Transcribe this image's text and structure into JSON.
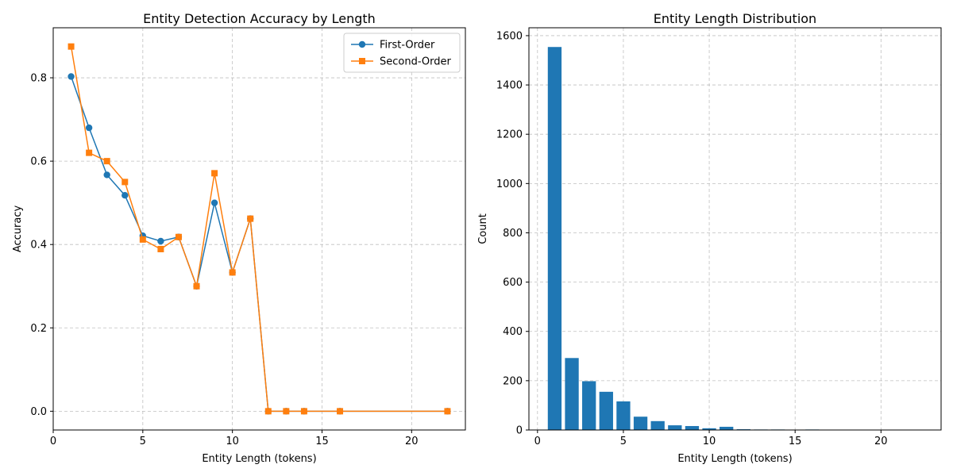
{
  "chart_data": [
    {
      "type": "line",
      "title": "Entity Detection Accuracy by Length",
      "xlabel": "Entity Length (tokens)",
      "ylabel": "Accuracy",
      "xlim": [
        0,
        23
      ],
      "ylim": [
        -0.045,
        0.92
      ],
      "xticks": [
        0,
        5,
        10,
        15,
        20
      ],
      "yticks": [
        0.0,
        0.2,
        0.4,
        0.6,
        0.8
      ],
      "ytick_format": 1,
      "grid": true,
      "legend_position": "top-right",
      "series": [
        {
          "name": "First-Order",
          "color": "#1f77b4",
          "marker": "circle",
          "x": [
            1,
            2,
            3,
            4,
            5,
            6,
            7,
            8,
            9,
            10,
            11,
            12,
            13,
            14,
            16,
            22
          ],
          "y": [
            0.803,
            0.68,
            0.567,
            0.518,
            0.421,
            0.408,
            0.418,
            0.3,
            0.5,
            0.333,
            0.462,
            0.0,
            0.0,
            0.0,
            0.0,
            0.0
          ]
        },
        {
          "name": "Second-Order",
          "color": "#ff7f0e",
          "marker": "square",
          "x": [
            1,
            2,
            3,
            4,
            5,
            6,
            7,
            8,
            9,
            10,
            11,
            12,
            13,
            14,
            16,
            22
          ],
          "y": [
            0.875,
            0.62,
            0.6,
            0.55,
            0.412,
            0.389,
            0.418,
            0.3,
            0.571,
            0.333,
            0.462,
            0.0,
            0.0,
            0.0,
            0.0,
            0.0
          ]
        }
      ]
    },
    {
      "type": "bar",
      "title": "Entity Length Distribution",
      "xlabel": "Entity Length (tokens)",
      "ylabel": "Count",
      "xlim": [
        -0.5,
        23.5
      ],
      "ylim": [
        0,
        1632
      ],
      "xticks": [
        0,
        5,
        10,
        15,
        20
      ],
      "yticks": [
        0,
        200,
        400,
        600,
        800,
        1000,
        1200,
        1400,
        1600
      ],
      "ytick_format": 0,
      "grid": true,
      "color": "#1f77b4",
      "bar_width": 0.8,
      "x": [
        1,
        2,
        3,
        4,
        5,
        6,
        7,
        8,
        9,
        10,
        11,
        12,
        13,
        14,
        16,
        22
      ],
      "values": [
        1554,
        292,
        198,
        155,
        116,
        54,
        36,
        19,
        16,
        7,
        13,
        3,
        2,
        2,
        2,
        1
      ]
    }
  ]
}
